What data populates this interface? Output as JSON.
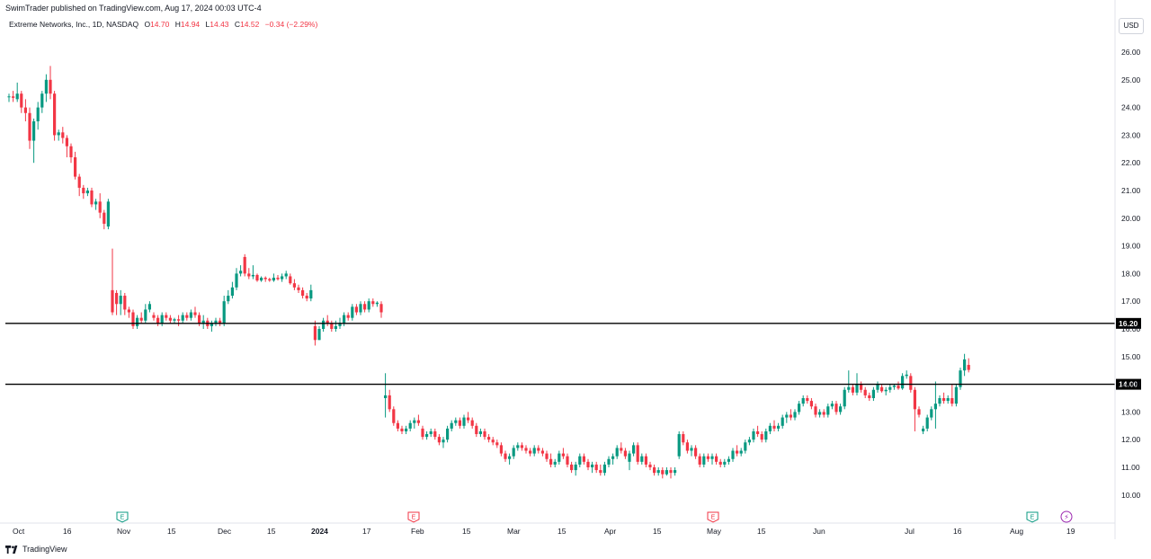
{
  "publisher": "SwimTrader published on TradingView.com, Aug 17, 2024 00:03 UTC-4",
  "legend": {
    "symbol": "Extreme Networks, Inc., 1D, NASDAQ",
    "o_label": "O",
    "o_value": "14.70",
    "h_label": "H",
    "h_value": "14.94",
    "l_label": "L",
    "l_value": "14.43",
    "c_label": "C",
    "c_value": "14.52",
    "change": "−0.34 (−2.29%)"
  },
  "currency": "USD",
  "footer": {
    "brand": "TradingView"
  },
  "colors": {
    "up": "#089981",
    "down": "#f23645",
    "line": "#000000",
    "event": "#9c27b0"
  },
  "chart_data": {
    "type": "candlestick",
    "ylim": [
      9.6,
      26.5
    ],
    "y_ticks": [
      "26.00",
      "25.00",
      "24.00",
      "23.00",
      "22.00",
      "21.00",
      "20.00",
      "19.00",
      "18.00",
      "17.00",
      "16.00",
      "15.00",
      "14.00",
      "13.00",
      "12.00",
      "11.00",
      "10.00"
    ],
    "x_ticks": [
      "Oct",
      "16",
      "Nov",
      "15",
      "Dec",
      "15",
      "2024",
      "17",
      "Feb",
      "15",
      "Mar",
      "15",
      "Apr",
      "15",
      "May",
      "15",
      "Jun",
      "Jul",
      "16",
      "Aug",
      "19"
    ],
    "horizontal_lines": [
      {
        "value": 16.2,
        "label": "16.20"
      },
      {
        "value": 14.0,
        "label": "14.00"
      }
    ],
    "events": [
      {
        "type": "earnings",
        "label": "E",
        "date": "Nov 1"
      },
      {
        "type": "earnings",
        "label": "E",
        "date": "Jan 31"
      },
      {
        "type": "earnings",
        "label": "E",
        "date": "May 1"
      },
      {
        "type": "earnings",
        "label": "E",
        "date": "Aug 1"
      },
      {
        "type": "split",
        "label": "⚡",
        "date": "Aug 15"
      }
    ],
    "candles": [
      [
        24.4,
        24.5,
        24.2,
        24.4
      ],
      [
        24.4,
        24.6,
        24.2,
        24.35
      ],
      [
        24.3,
        24.9,
        24.2,
        24.5
      ],
      [
        24.5,
        24.6,
        23.8,
        24.0
      ],
      [
        24.0,
        24.3,
        23.5,
        23.8
      ],
      [
        23.8,
        24.0,
        22.5,
        22.8
      ],
      [
        22.8,
        23.6,
        22.0,
        23.5
      ],
      [
        23.5,
        24.2,
        23.2,
        24.0
      ],
      [
        24.0,
        24.6,
        23.8,
        24.5
      ],
      [
        24.5,
        25.2,
        24.2,
        25.0
      ],
      [
        25.0,
        25.5,
        24.3,
        24.5
      ],
      [
        24.5,
        24.6,
        22.8,
        23.0
      ],
      [
        23.0,
        23.2,
        22.8,
        23.1
      ],
      [
        23.1,
        23.3,
        22.7,
        22.9
      ],
      [
        22.9,
        23.0,
        22.2,
        22.6
      ],
      [
        22.6,
        22.7,
        22.0,
        22.2
      ],
      [
        22.2,
        22.4,
        21.4,
        21.5
      ],
      [
        21.5,
        21.6,
        20.8,
        21.1
      ],
      [
        21.1,
        21.2,
        20.7,
        20.9
      ],
      [
        20.9,
        21.1,
        20.8,
        21.0
      ],
      [
        21.0,
        21.1,
        20.4,
        20.5
      ],
      [
        20.5,
        20.7,
        20.3,
        20.6
      ],
      [
        20.6,
        20.9,
        20.0,
        20.2
      ],
      [
        20.2,
        20.3,
        19.6,
        19.8
      ],
      [
        19.7,
        20.7,
        19.6,
        20.6
      ],
      [
        17.4,
        18.9,
        16.5,
        16.6
      ],
      [
        17.3,
        17.4,
        16.5,
        16.9
      ],
      [
        16.9,
        17.4,
        16.5,
        17.2
      ],
      [
        17.2,
        17.3,
        16.5,
        16.7
      ],
      [
        16.7,
        16.8,
        16.4,
        16.6
      ],
      [
        16.6,
        16.7,
        16.0,
        16.1
      ],
      [
        16.1,
        16.5,
        16.0,
        16.4
      ],
      [
        16.4,
        16.6,
        16.2,
        16.3
      ],
      [
        16.3,
        16.9,
        16.2,
        16.7
      ],
      [
        16.7,
        17.0,
        16.6,
        16.9
      ],
      [
        16.5,
        16.6,
        16.3,
        16.4
      ],
      [
        16.4,
        16.5,
        16.1,
        16.2
      ],
      [
        16.2,
        16.6,
        16.1,
        16.5
      ],
      [
        16.5,
        16.6,
        16.3,
        16.4
      ],
      [
        16.4,
        16.5,
        16.2,
        16.3
      ],
      [
        16.3,
        16.4,
        16.2,
        16.35
      ],
      [
        16.35,
        16.5,
        16.1,
        16.3
      ],
      [
        16.3,
        16.6,
        16.2,
        16.5
      ],
      [
        16.5,
        16.6,
        16.3,
        16.4
      ],
      [
        16.4,
        16.7,
        16.3,
        16.6
      ],
      [
        16.6,
        16.8,
        16.4,
        16.5
      ],
      [
        16.5,
        16.6,
        16.1,
        16.2
      ],
      [
        16.2,
        16.5,
        16.0,
        16.3
      ],
      [
        16.3,
        16.4,
        16.0,
        16.1
      ],
      [
        16.1,
        16.3,
        15.9,
        16.2
      ],
      [
        16.2,
        16.4,
        16.1,
        16.3
      ],
      [
        16.3,
        16.4,
        16.1,
        16.2
      ],
      [
        16.2,
        17.2,
        16.1,
        17.0
      ],
      [
        17.0,
        17.4,
        16.9,
        17.2
      ],
      [
        17.2,
        17.7,
        17.1,
        17.5
      ],
      [
        17.5,
        18.2,
        17.4,
        18.0
      ],
      [
        18.0,
        18.3,
        17.9,
        18.1
      ],
      [
        18.6,
        18.7,
        17.9,
        18.0
      ],
      [
        18.0,
        18.2,
        17.8,
        17.9
      ],
      [
        17.9,
        18.3,
        17.8,
        17.95
      ],
      [
        17.95,
        18.0,
        17.7,
        17.75
      ],
      [
        17.75,
        17.9,
        17.7,
        17.85
      ],
      [
        17.85,
        17.9,
        17.7,
        17.8
      ],
      [
        17.8,
        17.85,
        17.7,
        17.75
      ],
      [
        17.75,
        18.0,
        17.7,
        17.85
      ],
      [
        17.85,
        17.95,
        17.75,
        17.8
      ],
      [
        17.8,
        18.0,
        17.7,
        17.9
      ],
      [
        17.9,
        18.1,
        17.8,
        18.0
      ],
      [
        17.9,
        18.0,
        17.6,
        17.65
      ],
      [
        17.65,
        17.8,
        17.4,
        17.5
      ],
      [
        17.5,
        17.6,
        17.3,
        17.4
      ],
      [
        17.4,
        17.5,
        17.1,
        17.2
      ],
      [
        17.2,
        17.3,
        17.0,
        17.1
      ],
      [
        17.1,
        17.6,
        17.0,
        17.4
      ],
      [
        16.1,
        16.3,
        15.4,
        15.6
      ],
      [
        15.6,
        16.1,
        15.6,
        16.0
      ],
      [
        16.0,
        16.4,
        15.9,
        16.3
      ],
      [
        16.3,
        16.5,
        16.1,
        16.2
      ],
      [
        16.2,
        16.3,
        15.9,
        16.0
      ],
      [
        16.0,
        16.3,
        15.9,
        16.1
      ],
      [
        16.1,
        16.4,
        16.0,
        16.2
      ],
      [
        16.2,
        16.6,
        16.1,
        16.5
      ],
      [
        16.5,
        16.6,
        16.3,
        16.4
      ],
      [
        16.4,
        16.9,
        16.3,
        16.8
      ],
      [
        16.8,
        16.9,
        16.5,
        16.6
      ],
      [
        16.6,
        17.0,
        16.5,
        16.9
      ],
      [
        16.9,
        17.0,
        16.6,
        16.7
      ],
      [
        16.7,
        17.1,
        16.6,
        17.0
      ],
      [
        17.0,
        17.1,
        16.8,
        16.9
      ],
      [
        16.9,
        17.0,
        16.8,
        16.95
      ],
      [
        16.9,
        17.0,
        16.4,
        16.6
      ],
      [
        13.5,
        14.4,
        12.8,
        13.6
      ],
      [
        13.6,
        13.8,
        13.0,
        13.1
      ],
      [
        13.1,
        13.2,
        12.5,
        12.6
      ],
      [
        12.6,
        12.7,
        12.3,
        12.4
      ],
      [
        12.4,
        12.5,
        12.2,
        12.3
      ],
      [
        12.3,
        12.5,
        12.2,
        12.4
      ],
      [
        12.4,
        12.7,
        12.3,
        12.6
      ],
      [
        12.6,
        12.8,
        12.4,
        12.7
      ],
      [
        12.7,
        12.9,
        12.5,
        12.6
      ],
      [
        12.4,
        12.5,
        12.0,
        12.1
      ],
      [
        12.1,
        12.3,
        12.0,
        12.2
      ],
      [
        12.2,
        12.4,
        12.1,
        12.3
      ],
      [
        12.3,
        12.4,
        12.0,
        12.1
      ],
      [
        12.1,
        12.2,
        11.8,
        11.9
      ],
      [
        11.9,
        12.1,
        11.7,
        12.0
      ],
      [
        12.0,
        12.5,
        11.9,
        12.4
      ],
      [
        12.4,
        12.7,
        12.3,
        12.6
      ],
      [
        12.6,
        12.8,
        12.5,
        12.7
      ],
      [
        12.7,
        12.8,
        12.4,
        12.5
      ],
      [
        12.5,
        12.9,
        12.4,
        12.8
      ],
      [
        12.8,
        13.0,
        12.6,
        12.7
      ],
      [
        12.7,
        12.8,
        12.4,
        12.5
      ],
      [
        12.5,
        12.6,
        12.1,
        12.2
      ],
      [
        12.2,
        12.4,
        12.1,
        12.3
      ],
      [
        12.3,
        12.4,
        12.0,
        12.1
      ],
      [
        12.1,
        12.2,
        11.9,
        12.0
      ],
      [
        12.0,
        12.1,
        11.8,
        11.9
      ],
      [
        11.9,
        12.0,
        11.7,
        11.8
      ],
      [
        11.8,
        11.9,
        11.4,
        11.5
      ],
      [
        11.5,
        11.6,
        11.2,
        11.3
      ],
      [
        11.3,
        11.5,
        11.1,
        11.4
      ],
      [
        11.4,
        11.8,
        11.3,
        11.7
      ],
      [
        11.7,
        11.9,
        11.6,
        11.8
      ],
      [
        11.8,
        11.9,
        11.6,
        11.7
      ],
      [
        11.7,
        11.8,
        11.5,
        11.6
      ],
      [
        11.6,
        11.7,
        11.4,
        11.5
      ],
      [
        11.5,
        11.8,
        11.4,
        11.7
      ],
      [
        11.7,
        11.8,
        11.5,
        11.6
      ],
      [
        11.6,
        11.7,
        11.4,
        11.5
      ],
      [
        11.5,
        11.6,
        11.2,
        11.3
      ],
      [
        11.3,
        11.5,
        11.0,
        11.1
      ],
      [
        11.1,
        11.3,
        11.0,
        11.2
      ],
      [
        11.2,
        11.6,
        11.1,
        11.5
      ],
      [
        11.5,
        11.7,
        11.3,
        11.4
      ],
      [
        11.4,
        11.5,
        11.0,
        11.1
      ],
      [
        11.1,
        11.2,
        10.8,
        10.9
      ],
      [
        10.9,
        11.2,
        10.7,
        11.1
      ],
      [
        11.1,
        11.5,
        11.0,
        11.4
      ],
      [
        11.4,
        11.5,
        11.1,
        11.2
      ],
      [
        11.2,
        11.3,
        10.9,
        11.0
      ],
      [
        11.0,
        11.2,
        10.8,
        11.1
      ],
      [
        11.1,
        11.2,
        10.8,
        10.9
      ],
      [
        10.9,
        11.1,
        10.7,
        10.8
      ],
      [
        10.8,
        11.2,
        10.7,
        11.1
      ],
      [
        11.1,
        11.4,
        11.0,
        11.3
      ],
      [
        11.3,
        11.5,
        11.1,
        11.4
      ],
      [
        11.4,
        11.8,
        11.3,
        11.7
      ],
      [
        11.7,
        11.9,
        11.5,
        11.6
      ],
      [
        11.6,
        11.7,
        11.3,
        11.4
      ],
      [
        11.2,
        11.6,
        10.9,
        11.5
      ],
      [
        11.5,
        11.9,
        11.4,
        11.8
      ],
      [
        11.8,
        11.9,
        11.1,
        11.2
      ],
      [
        11.2,
        11.5,
        11.1,
        11.4
      ],
      [
        11.4,
        11.5,
        11.0,
        11.1
      ],
      [
        11.1,
        11.2,
        10.9,
        11.0
      ],
      [
        11.0,
        11.1,
        10.7,
        10.8
      ],
      [
        10.8,
        11.0,
        10.7,
        10.9
      ],
      [
        10.9,
        11.0,
        10.6,
        10.75
      ],
      [
        10.75,
        11.0,
        10.7,
        10.9
      ],
      [
        10.9,
        11.0,
        10.6,
        10.8
      ],
      [
        10.8,
        11.0,
        10.7,
        10.9
      ],
      [
        11.4,
        12.3,
        11.3,
        12.2
      ],
      [
        12.2,
        12.3,
        11.8,
        11.9
      ],
      [
        11.9,
        12.0,
        11.5,
        11.6
      ],
      [
        11.6,
        11.8,
        11.4,
        11.7
      ],
      [
        11.7,
        11.8,
        11.3,
        11.4
      ],
      [
        11.4,
        11.5,
        11.0,
        11.1
      ],
      [
        11.1,
        11.5,
        11.0,
        11.4
      ],
      [
        11.4,
        11.5,
        11.2,
        11.3
      ],
      [
        11.3,
        11.5,
        11.1,
        11.4
      ],
      [
        11.4,
        11.5,
        11.1,
        11.2
      ],
      [
        11.2,
        11.3,
        11.0,
        11.1
      ],
      [
        11.1,
        11.3,
        11.0,
        11.2
      ],
      [
        11.2,
        11.4,
        11.1,
        11.3
      ],
      [
        11.3,
        11.7,
        11.2,
        11.6
      ],
      [
        11.6,
        11.8,
        11.4,
        11.5
      ],
      [
        11.5,
        11.7,
        11.4,
        11.6
      ],
      [
        11.6,
        12.0,
        11.5,
        11.9
      ],
      [
        11.9,
        12.1,
        11.8,
        12.0
      ],
      [
        12.0,
        12.4,
        11.9,
        12.3
      ],
      [
        12.3,
        12.5,
        12.1,
        12.2
      ],
      [
        12.2,
        12.3,
        11.9,
        12.0
      ],
      [
        12.0,
        12.4,
        11.9,
        12.3
      ],
      [
        12.3,
        12.6,
        12.2,
        12.5
      ],
      [
        12.5,
        12.7,
        12.3,
        12.4
      ],
      [
        12.4,
        12.6,
        12.3,
        12.5
      ],
      [
        12.5,
        12.9,
        12.4,
        12.8
      ],
      [
        12.8,
        13.0,
        12.6,
        12.9
      ],
      [
        12.9,
        13.1,
        12.7,
        12.8
      ],
      [
        12.8,
        13.1,
        12.7,
        13.0
      ],
      [
        13.0,
        13.4,
        12.9,
        13.3
      ],
      [
        13.3,
        13.6,
        13.2,
        13.5
      ],
      [
        13.5,
        13.6,
        13.3,
        13.4
      ],
      [
        13.4,
        13.5,
        13.1,
        13.2
      ],
      [
        13.2,
        13.3,
        12.8,
        12.9
      ],
      [
        12.9,
        13.1,
        12.8,
        13.0
      ],
      [
        13.0,
        13.1,
        12.8,
        12.9
      ],
      [
        12.9,
        13.3,
        12.8,
        13.2
      ],
      [
        13.2,
        13.4,
        13.1,
        13.3
      ],
      [
        13.3,
        13.4,
        12.9,
        13.0
      ],
      [
        13.0,
        13.3,
        12.9,
        13.2
      ],
      [
        13.2,
        13.9,
        13.1,
        13.8
      ],
      [
        13.8,
        14.5,
        13.7,
        13.9
      ],
      [
        13.9,
        14.0,
        13.6,
        13.7
      ],
      [
        13.7,
        14.4,
        13.6,
        14.0
      ],
      [
        14.0,
        14.1,
        13.7,
        13.8
      ],
      [
        13.8,
        13.9,
        13.5,
        13.6
      ],
      [
        13.6,
        13.7,
        13.4,
        13.5
      ],
      [
        13.5,
        13.9,
        13.4,
        13.8
      ],
      [
        13.8,
        14.1,
        13.7,
        14.0
      ],
      [
        13.9,
        14.0,
        13.7,
        13.75
      ],
      [
        13.75,
        13.9,
        13.6,
        13.8
      ],
      [
        13.8,
        14.0,
        13.7,
        13.9
      ],
      [
        13.9,
        14.0,
        13.8,
        13.95
      ],
      [
        13.95,
        14.1,
        13.8,
        13.85
      ],
      [
        13.85,
        14.4,
        13.8,
        14.3
      ],
      [
        14.3,
        14.5,
        14.2,
        14.35
      ],
      [
        14.3,
        14.4,
        13.7,
        13.8
      ],
      [
        13.8,
        13.9,
        12.3,
        13.1
      ],
      [
        13.1,
        13.2,
        12.8,
        12.9
      ],
      [
        12.3,
        12.5,
        12.2,
        12.4
      ],
      [
        12.4,
        12.9,
        12.3,
        12.8
      ],
      [
        12.8,
        13.2,
        12.7,
        13.1
      ],
      [
        13.1,
        14.1,
        12.4,
        13.3
      ],
      [
        13.3,
        13.6,
        13.2,
        13.5
      ],
      [
        13.5,
        13.7,
        13.3,
        13.4
      ],
      [
        13.4,
        13.6,
        13.3,
        13.5
      ],
      [
        13.5,
        14.0,
        13.2,
        13.3
      ],
      [
        13.3,
        14.0,
        13.2,
        13.9
      ],
      [
        13.9,
        14.6,
        13.8,
        14.5
      ],
      [
        14.5,
        15.1,
        14.3,
        14.9
      ],
      [
        14.7,
        14.94,
        14.43,
        14.52
      ]
    ]
  }
}
